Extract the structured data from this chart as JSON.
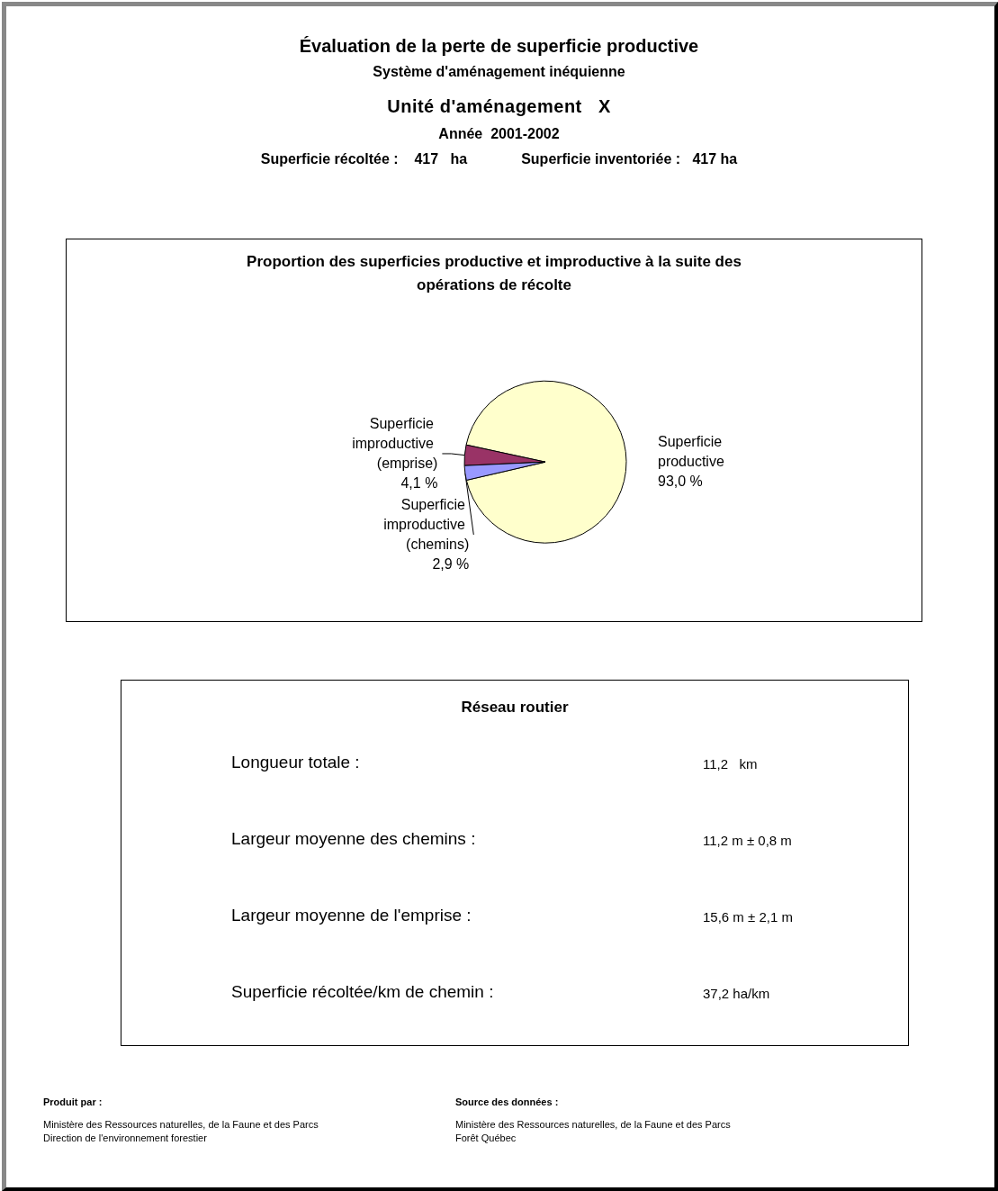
{
  "chart_data": [
    {
      "type": "other",
      "title": "Évaluation de la perte de superficie productive",
      "subtitle": "Système d'aménagement inéquienne",
      "annotations": [
        "Unité d'aménagement   X",
        "Année  2001-2002",
        "Superficie récoltée :    417   ha",
        "Superficie inventoriée :   417 ha"
      ]
    },
    {
      "type": "pie",
      "title": "Proportion des superficies productive et improductive à la suite des opérations de récolte",
      "categories": [
        "Superficie productive",
        "Superficie improductive (emprise)",
        "Superficie improductive (chemins)"
      ],
      "values": [
        93.0,
        4.1,
        2.9
      ],
      "colors": [
        "#ffffcc",
        "#993366",
        "#9999ff"
      ],
      "value_labels": [
        "93,0 %",
        "4,1 %",
        "2,9 %"
      ]
    },
    {
      "type": "other",
      "title": "Réseau routier",
      "annotations": [
        "Longueur totale :",
        "11,2   km",
        "Largeur moyenne des chemins :",
        "11,2 m ± 0,8 m",
        "Largeur moyenne de l'emprise :",
        "15,6 m ± 2,1 m",
        "Superficie récoltée/km de chemin :",
        "37,2 ha/km"
      ]
    },
    {
      "type": "other",
      "annotations": [
        "Produit par :",
        "Ministère des Ressources naturelles, de la Faune et des Parcs\nDirection de l'environnement forestier",
        "Source des données :",
        "Ministère des Ressources naturelles, de la Faune et des Parcs\nForêt Québec"
      ]
    }
  ]
}
